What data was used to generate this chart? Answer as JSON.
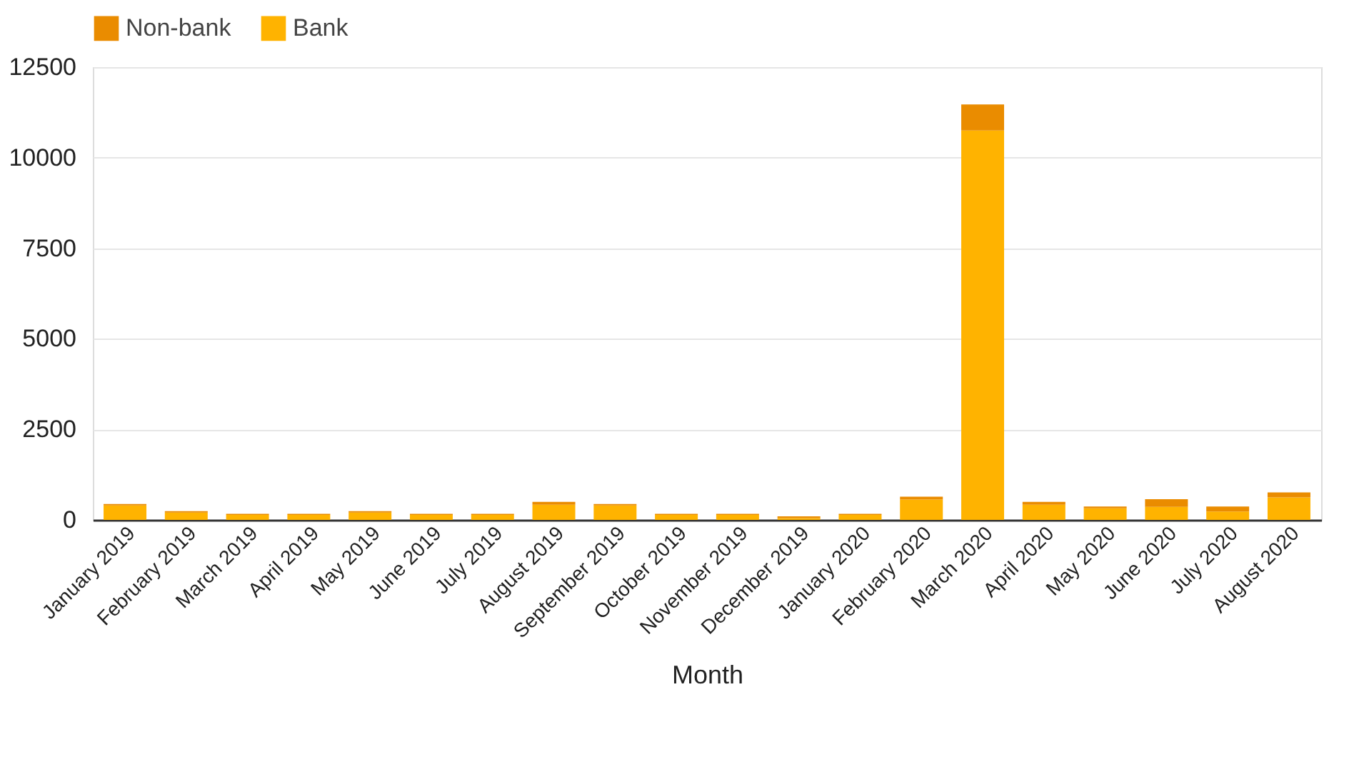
{
  "chart_data": {
    "type": "bar",
    "stacked": true,
    "xlabel": "Month",
    "categories": [
      "January 2019",
      "February 2019",
      "March 2019",
      "April 2019",
      "May 2019",
      "June 2019",
      "July 2019",
      "August 2019",
      "September 2019",
      "October 2019",
      "November 2019",
      "December 2019",
      "January 2020",
      "February 2020",
      "March 2020",
      "April 2020",
      "May 2020",
      "June 2020",
      "July 2020",
      "August 2020"
    ],
    "series": [
      {
        "name": "Bank",
        "color": "#ffb300",
        "values": [
          400,
          200,
          140,
          140,
          200,
          140,
          140,
          420,
          400,
          140,
          140,
          50,
          140,
          560,
          10750,
          420,
          320,
          360,
          230,
          620
        ]
      },
      {
        "name": "Non-bank",
        "color": "#ea8c00",
        "values": [
          40,
          40,
          30,
          30,
          40,
          30,
          30,
          80,
          40,
          30,
          30,
          50,
          30,
          80,
          720,
          80,
          50,
          210,
          140,
          140
        ]
      }
    ],
    "ylim": [
      0,
      12500
    ],
    "yticks": [
      0,
      2500,
      5000,
      7500,
      10000,
      12500
    ],
    "grid": "y",
    "legend": "top"
  }
}
